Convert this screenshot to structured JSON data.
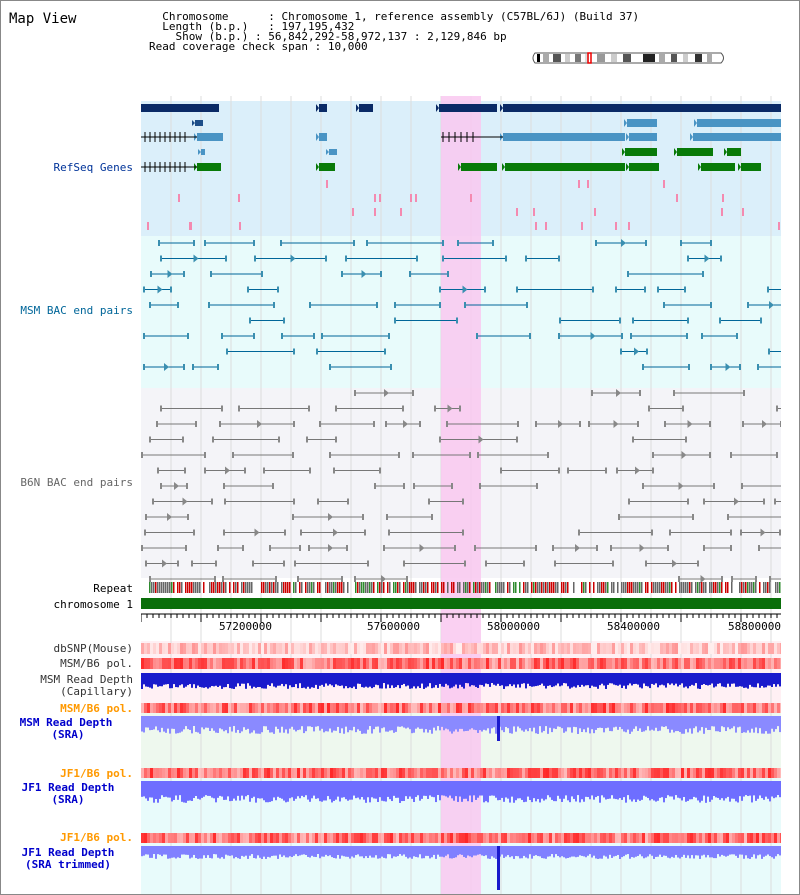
{
  "title": "Map View",
  "info": {
    "chromosome_label": "Chromosome",
    "chromosome_value": "Chromosome 1, reference assembly (C57BL/6J) (Build 37)",
    "length_label": "Length (b.p.)",
    "length_value": "197,195,432",
    "show_label": "Show (b.p.)",
    "show_value": "56,842,292-58,972,137 : 2,129,846 bp",
    "span_label": "Read coverage check span",
    "span_value": "10,000"
  },
  "tracks": {
    "refseq": "RefSeq Genes",
    "msm_bac": "MSM BAC end pairs",
    "b6n_bac": "B6N BAC end pairs",
    "repeat": "Repeat",
    "chromosome": "chromosome 1",
    "dbsnp": "dbSNP(Mouse)",
    "msm_b6_pol": "MSM/B6 pol.",
    "msm_depth_cap_1": "MSM Read Depth",
    "msm_depth_cap_2": "(Capillary)",
    "msm_b6_pol2": "MSM/B6 pol.",
    "msm_depth_sra_1": "MSM Read Depth",
    "msm_depth_sra_2": "(SRA)",
    "jf1_b6_pol": "JF1/B6 pol.",
    "jf1_depth_sra_1": "JF1 Read Depth",
    "jf1_depth_sra_2": "(SRA)",
    "jf1_b6_pol2": "JF1/B6 pol.",
    "jf1_depth_trim_1": "JF1 Read Depth",
    "jf1_depth_trim_2": "(SRA trimmed)"
  },
  "axis": {
    "ticks": [
      "57200000",
      "57600000",
      "58000000",
      "58400000",
      "58800000"
    ]
  },
  "colors": {
    "refseq_label": "#003399",
    "msm_label": "#006699",
    "b6n_label": "#666666",
    "orange": "#ff9900",
    "blue": "#0000cc",
    "highlight": "#f9c8f0"
  }
}
